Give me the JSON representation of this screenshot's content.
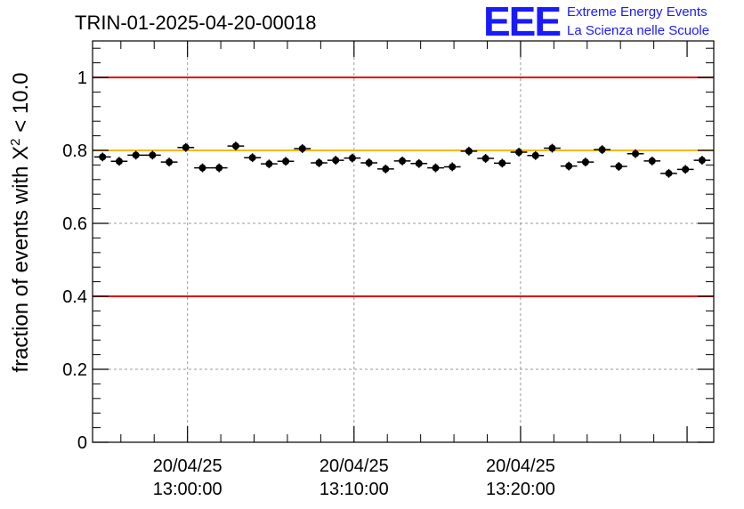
{
  "chart_data": {
    "type": "scatter",
    "title": "TRIN-01-2025-04-20-00018",
    "ylabel": "fraction of events with χ² < 10.0",
    "ylabel_main": "fraction of events with X",
    "ylabel_sup": "2",
    "ylabel_tail": " < 10.0",
    "xlabel": "",
    "ylim": [
      0,
      1.1
    ],
    "xlim_minutes": [
      -5.7,
      31.6
    ],
    "x_unit": "minutes after 20/04/25 13:00:00",
    "y_ticks": [
      0,
      0.2,
      0.4,
      0.6,
      0.8,
      1
    ],
    "y_tick_labels": [
      "0",
      "0.2",
      "0.4",
      "0.6",
      "0.8",
      "1"
    ],
    "x_ticks_minutes": [
      0,
      10,
      20
    ],
    "x_tick_dates": [
      "20/04/25",
      "20/04/25",
      "20/04/25"
    ],
    "x_tick_times": [
      "13:00:00",
      "13:10:00",
      "13:20:00"
    ],
    "grid": true,
    "reference_lines": [
      {
        "y": 1.0,
        "color": "#e00000"
      },
      {
        "y": 0.8,
        "color": "#f5b800"
      },
      {
        "y": 0.4,
        "color": "#e00000"
      }
    ],
    "series": [
      {
        "name": "fraction",
        "color": "#000000",
        "x_halfwidth_minutes": 0.5,
        "x": [
          -5.1,
          -4.1,
          -3.1,
          -2.1,
          -1.1,
          -0.1,
          0.9,
          1.9,
          2.9,
          3.9,
          4.9,
          5.9,
          6.9,
          7.9,
          8.9,
          9.9,
          10.9,
          11.9,
          12.9,
          13.9,
          14.9,
          15.9,
          16.9,
          17.9,
          18.9,
          19.9,
          20.9,
          21.9,
          22.9,
          23.9,
          24.9,
          25.9,
          26.9,
          27.9,
          28.9,
          29.9,
          30.9
        ],
        "y": [
          0.782,
          0.77,
          0.787,
          0.787,
          0.768,
          0.808,
          0.752,
          0.752,
          0.812,
          0.78,
          0.763,
          0.77,
          0.805,
          0.766,
          0.773,
          0.779,
          0.766,
          0.749,
          0.771,
          0.764,
          0.752,
          0.755,
          0.798,
          0.778,
          0.765,
          0.795,
          0.786,
          0.806,
          0.757,
          0.768,
          0.802,
          0.756,
          0.791,
          0.771,
          0.737,
          0.748,
          0.773
        ],
        "yerr": [
          0.012,
          0.012,
          0.012,
          0.012,
          0.012,
          0.012,
          0.012,
          0.012,
          0.012,
          0.012,
          0.012,
          0.012,
          0.012,
          0.012,
          0.012,
          0.012,
          0.012,
          0.012,
          0.012,
          0.012,
          0.012,
          0.012,
          0.012,
          0.012,
          0.012,
          0.012,
          0.012,
          0.012,
          0.012,
          0.012,
          0.012,
          0.012,
          0.012,
          0.012,
          0.012,
          0.012,
          0.012
        ]
      }
    ]
  },
  "logo": {
    "mark": "EEE",
    "line1": "Extreme Energy Events",
    "line2": "La Scienza nelle Scuole"
  }
}
